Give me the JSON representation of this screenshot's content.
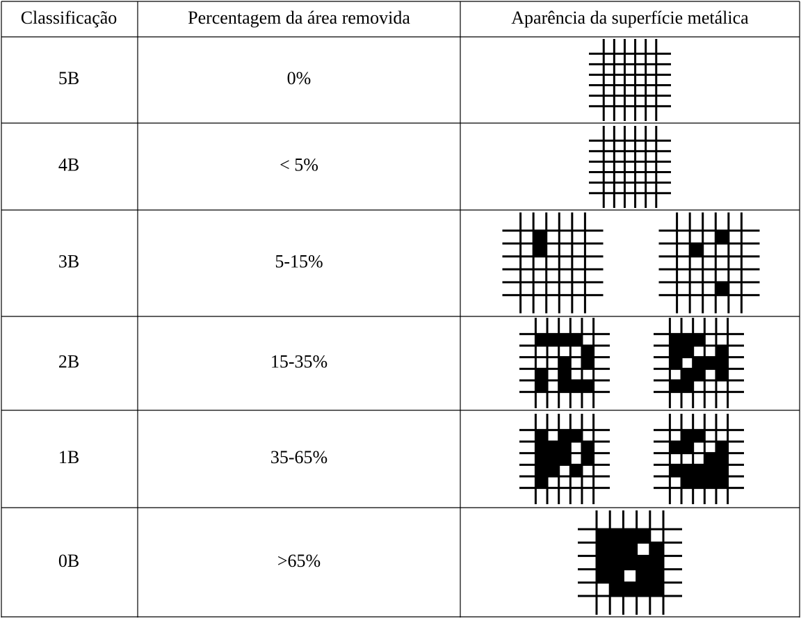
{
  "table": {
    "header": [
      "Classificação",
      "Percentagem da área removida",
      "Aparência da superfície metálica"
    ],
    "rows": [
      [
        "5B",
        "0%"
      ],
      [
        "4B",
        "< 5%"
      ],
      [
        "3B",
        "5-15%"
      ],
      [
        "2B",
        "15-35%"
      ],
      [
        "1B",
        "35-65%"
      ],
      [
        "0B",
        ">65%"
      ]
    ]
  }
}
